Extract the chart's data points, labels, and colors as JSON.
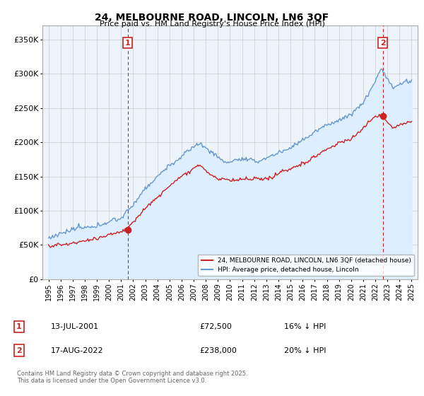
{
  "title": "24, MELBOURNE ROAD, LINCOLN, LN6 3QF",
  "subtitle": "Price paid vs. HM Land Registry's House Price Index (HPI)",
  "ylim": [
    0,
    370000
  ],
  "xlim_start": 1994.5,
  "xlim_end": 2025.5,
  "xticks": [
    1995,
    1996,
    1997,
    1998,
    1999,
    2000,
    2001,
    2002,
    2003,
    2004,
    2005,
    2006,
    2007,
    2008,
    2009,
    2010,
    2011,
    2012,
    2013,
    2014,
    2015,
    2016,
    2017,
    2018,
    2019,
    2020,
    2021,
    2022,
    2023,
    2024,
    2025
  ],
  "sale1_x": 2001.54,
  "sale1_y": 72500,
  "sale1_label": "1",
  "sale1_date": "13-JUL-2001",
  "sale1_price": "£72,500",
  "sale1_hpi": "16% ↓ HPI",
  "sale2_x": 2022.62,
  "sale2_y": 238000,
  "sale2_label": "2",
  "sale2_date": "17-AUG-2022",
  "sale2_price": "£238,000",
  "sale2_hpi": "20% ↓ HPI",
  "line1_color": "#cc2222",
  "line2_color": "#6699cc",
  "fill_color": "#ddeeff",
  "vline_color": "#cc2222",
  "sale_marker_color": "#cc2222",
  "legend1_label": "24, MELBOURNE ROAD, LINCOLN, LN6 3QF (detached house)",
  "legend2_label": "HPI: Average price, detached house, Lincoln",
  "footnote": "Contains HM Land Registry data © Crown copyright and database right 2025.\nThis data is licensed under the Open Government Licence v3.0.",
  "background_color": "#ffffff",
  "plot_bg_color": "#eef4fb",
  "grid_color": "#cccccc"
}
